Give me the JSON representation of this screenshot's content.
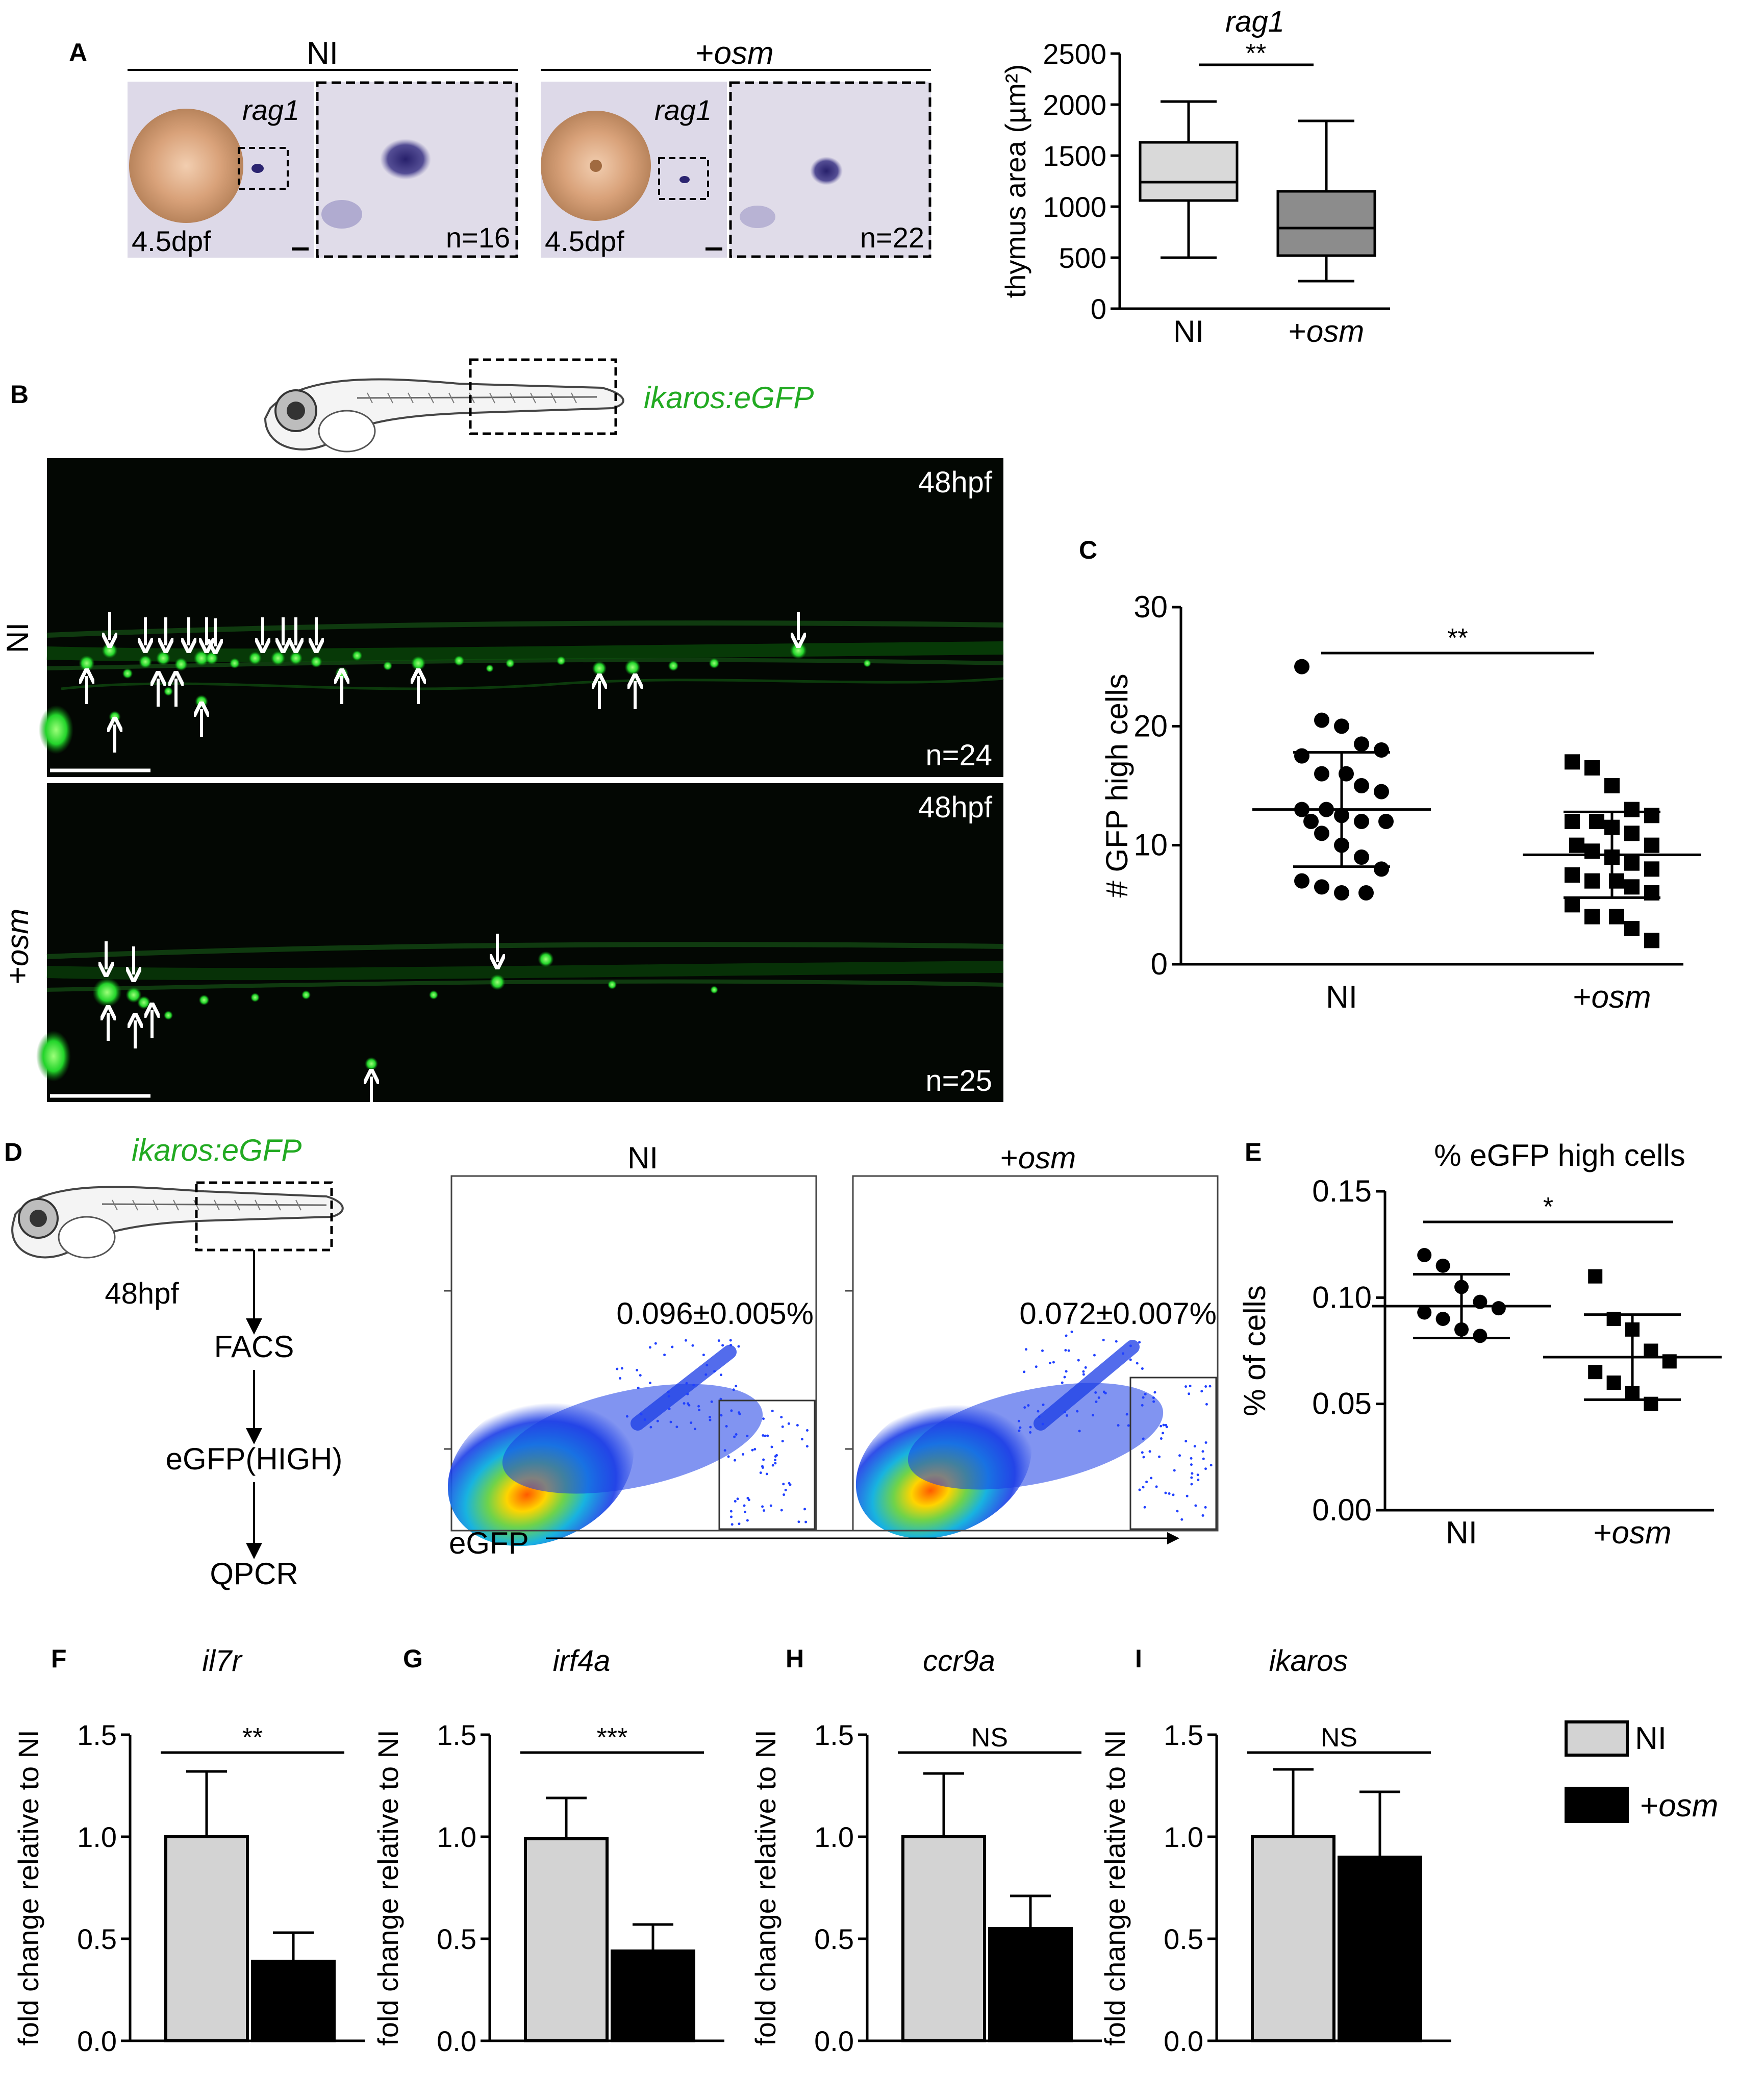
{
  "panels": {
    "A": {
      "letter": "A",
      "groups": [
        {
          "label": "NI",
          "label_prefix": "",
          "label_italic": "",
          "gene": "rag1",
          "stage": "4.5dpf",
          "n": "n=16"
        },
        {
          "label": "",
          "label_prefix": "+",
          "label_italic": "osm",
          "gene": "rag1",
          "stage": "4.5dpf",
          "n": "n=22"
        }
      ]
    },
    "B": {
      "letter": "B",
      "line_label": "ikaros:eGFP",
      "images": [
        {
          "stage": "48hpf",
          "n": "n=24",
          "side_label": "NI",
          "side_prefix": "",
          "side_italic": ""
        },
        {
          "stage": "48hpf",
          "n": "n=25",
          "side_label": "",
          "side_prefix": "+",
          "side_italic": "osm"
        }
      ]
    },
    "C": {
      "letter": "C"
    },
    "D": {
      "letter": "D",
      "line_label": "ikaros:eGFP",
      "stage": "48hpf",
      "steps": [
        "FACS",
        "eGFP(HIGH)",
        "QPCR"
      ],
      "plots": [
        {
          "title": "NI",
          "title_prefix": "",
          "title_italic": "",
          "gate_value": "0.096±0.005%"
        },
        {
          "title": "",
          "title_prefix": "+",
          "title_italic": "osm",
          "gate_value": "0.072±0.007%"
        }
      ],
      "x_axis_label": "eGFP"
    },
    "E": {
      "letter": "E"
    },
    "F": {
      "letter": "F"
    },
    "G": {
      "letter": "G"
    },
    "H": {
      "letter": "H"
    },
    "I": {
      "letter": "I"
    }
  },
  "legend": {
    "items": [
      {
        "prefix": "",
        "italic": "",
        "label": "NI",
        "color": "#d3d3d3"
      },
      {
        "prefix": "+",
        "italic": "osm",
        "label": "",
        "color": "#000000"
      }
    ]
  },
  "chart_data": [
    {
      "id": "A",
      "type": "box",
      "title": "rag1",
      "ylabel": "thymus area (µm²)",
      "ylim": [
        0,
        2500
      ],
      "yticks": [
        "0",
        "500",
        "1000",
        "1500",
        "2000",
        "2500"
      ],
      "categories": [
        "NI",
        "+osm"
      ],
      "series": [
        {
          "name": "NI",
          "min": 500,
          "q1": 1060,
          "median": 1240,
          "q3": 1630,
          "max": 2030,
          "color": "#d9d9d9"
        },
        {
          "name": "+osm",
          "min": 270,
          "q1": 520,
          "median": 790,
          "q3": 1150,
          "max": 1840,
          "color": "#8c8c8c"
        }
      ],
      "significance": "**"
    },
    {
      "id": "C",
      "type": "scatter",
      "ylabel": "# GFP high cells",
      "ylim": [
        0,
        30
      ],
      "yticks": [
        "0",
        "10",
        "20",
        "30"
      ],
      "categories": [
        "NI",
        "+osm"
      ],
      "series": [
        {
          "name": "NI",
          "marker": "circle",
          "mean": 13.0,
          "sd_low": 8.2,
          "sd_high": 17.8,
          "values": [
            25,
            20.5,
            20,
            18.5,
            18,
            17.5,
            16,
            16,
            15,
            14.5,
            13,
            13,
            12.5,
            12,
            12,
            12,
            11,
            10,
            9,
            8,
            7,
            6.5,
            6,
            6
          ]
        },
        {
          "name": "+osm",
          "marker": "square",
          "mean": 9.2,
          "sd_low": 5.6,
          "sd_high": 12.8,
          "values": [
            17,
            16.5,
            15,
            13,
            12.5,
            12,
            12,
            11.5,
            11,
            10,
            10,
            9.5,
            9,
            8.5,
            8,
            7.5,
            7,
            7,
            6.5,
            6,
            5,
            4,
            4,
            3,
            2
          ]
        }
      ],
      "significance": "**"
    },
    {
      "id": "E",
      "type": "scatter",
      "title": "% eGFP high cells",
      "ylabel": "% of cells",
      "ylim": [
        0,
        0.15
      ],
      "yticks": [
        "0.00",
        "0.05",
        "0.10",
        "0.15"
      ],
      "categories": [
        "NI",
        "+osm"
      ],
      "series": [
        {
          "name": "NI",
          "marker": "circle",
          "mean": 0.096,
          "sd_low": 0.081,
          "sd_high": 0.111,
          "values": [
            0.12,
            0.115,
            0.105,
            0.098,
            0.095,
            0.093,
            0.09,
            0.085,
            0.082
          ]
        },
        {
          "name": "+osm",
          "marker": "square",
          "mean": 0.072,
          "sd_low": 0.052,
          "sd_high": 0.092,
          "values": [
            0.11,
            0.09,
            0.085,
            0.075,
            0.07,
            0.065,
            0.06,
            0.055,
            0.05
          ]
        }
      ],
      "significance": "*"
    },
    {
      "id": "F",
      "type": "bar",
      "title": "il7r",
      "ylabel": "fold change relative to NI",
      "ylim": [
        0,
        1.5
      ],
      "yticks": [
        "0.0",
        "0.5",
        "1.0",
        "1.5"
      ],
      "categories": [
        "NI",
        "+osm"
      ],
      "values": [
        1.0,
        0.39
      ],
      "errors": [
        0.32,
        0.14
      ],
      "significance": "**"
    },
    {
      "id": "G",
      "type": "bar",
      "title": "irf4a",
      "ylabel": "fold change relative to NI",
      "ylim": [
        0,
        1.5
      ],
      "yticks": [
        "0.0",
        "0.5",
        "1.0",
        "1.5"
      ],
      "categories": [
        "NI",
        "+osm"
      ],
      "values": [
        0.99,
        0.44
      ],
      "errors": [
        0.2,
        0.13
      ],
      "significance": "***"
    },
    {
      "id": "H",
      "type": "bar",
      "title": "ccr9a",
      "ylabel": "fold change relative to NI",
      "ylim": [
        0,
        1.5
      ],
      "yticks": [
        "0.0",
        "0.5",
        "1.0",
        "1.5"
      ],
      "categories": [
        "NI",
        "+osm"
      ],
      "values": [
        1.0,
        0.55
      ],
      "errors": [
        0.31,
        0.16
      ],
      "significance": "NS"
    },
    {
      "id": "I",
      "type": "bar",
      "title": "ikaros",
      "ylabel": "fold change relative to NI",
      "ylim": [
        0,
        1.5
      ],
      "yticks": [
        "0.0",
        "0.5",
        "1.0",
        "1.5"
      ],
      "categories": [
        "NI",
        "+osm"
      ],
      "values": [
        1.0,
        0.9
      ],
      "errors": [
        0.33,
        0.32
      ],
      "significance": "NS"
    }
  ]
}
